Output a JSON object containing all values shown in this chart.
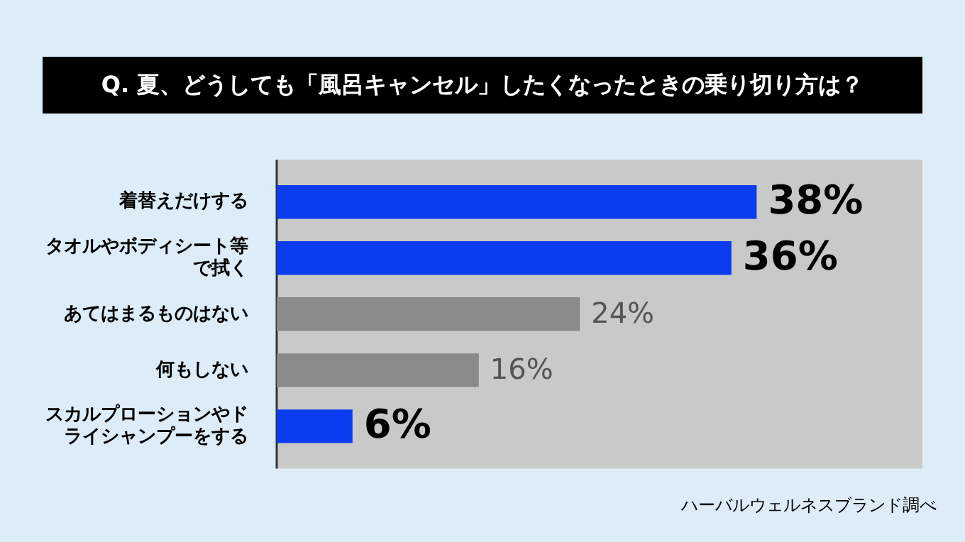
{
  "chart_data": {
    "type": "bar",
    "orientation": "horizontal",
    "title": "Q. 夏、どうしても「風呂キャンセル」したくなったときの乗り切り方は？",
    "categories": [
      "着替えだけする",
      "タオルやボディシート等で拭く",
      "あてはまるものはない",
      "何もしない",
      "スカルプローションやドライシャンプーをする"
    ],
    "values": [
      38,
      36,
      24,
      16,
      6
    ],
    "colors": [
      "#0a3cf0",
      "#0a3cf0",
      "#8a8a8a",
      "#8a8a8a",
      "#0a3cf0"
    ],
    "value_labels": [
      "38%",
      "36%",
      "24%",
      "16%",
      "6%"
    ],
    "annotations": [
      "ハーバルウェルネスブランド調べ"
    ],
    "legend": false
  }
}
